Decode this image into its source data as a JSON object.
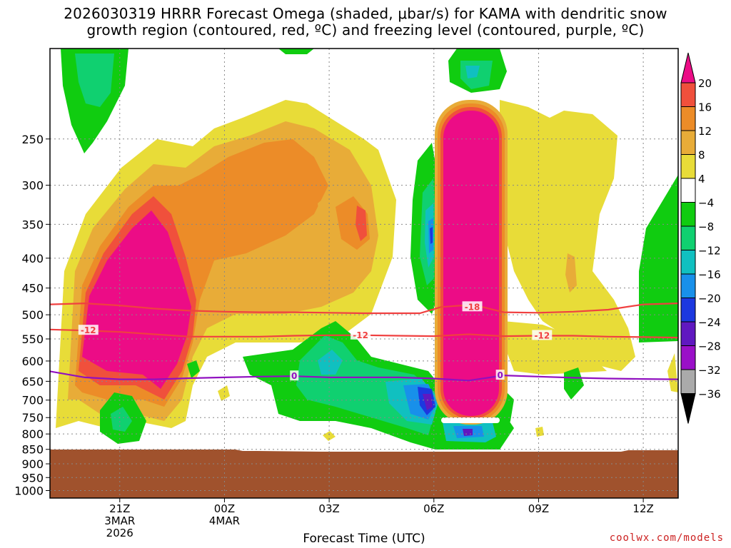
{
  "chart_data": {
    "type": "heatmap",
    "title_line1": "2026030319 HRRR Forecast Omega (shaded, μbar/s) for KAMA with dendritic snow",
    "title_line2": "growth region (contoured, red, ºC) and freezing level (contoured, purple, ºC)",
    "xlabel": "Forecast Time (UTC)",
    "ylabel": "",
    "y_axis": {
      "labels": [
        "250",
        "300",
        "350",
        "400",
        "450",
        "500",
        "550",
        "600",
        "650",
        "700",
        "750",
        "800",
        "850",
        "900",
        "950",
        "1000"
      ],
      "values": [
        250,
        300,
        350,
        400,
        450,
        500,
        550,
        600,
        650,
        700,
        750,
        800,
        850,
        900,
        950,
        1000
      ],
      "range_hpa": [
        175,
        1030
      ]
    },
    "x_axis": {
      "ticks": [
        {
          "label": "21Z",
          "sub1": "3MAR",
          "sub2": "2026",
          "hour": 2
        },
        {
          "label": "00Z",
          "sub1": "4MAR",
          "sub2": "",
          "hour": 5
        },
        {
          "label": "03Z",
          "sub1": "",
          "sub2": "",
          "hour": 8
        },
        {
          "label": "06Z",
          "sub1": "",
          "sub2": "",
          "hour": 11
        },
        {
          "label": "09Z",
          "sub1": "",
          "sub2": "",
          "hour": 14
        },
        {
          "label": "12Z",
          "sub1": "",
          "sub2": "",
          "hour": 17
        }
      ],
      "range_hours": [
        0,
        18
      ]
    },
    "colorbar": {
      "labels": [
        "20",
        "16",
        "12",
        "8",
        "4",
        "−4",
        "−8",
        "−12",
        "−16",
        "−20",
        "−24",
        "−28",
        "−32",
        "−36"
      ],
      "colors": [
        "#ec0c86",
        "#f0503c",
        "#ec8c28",
        "#e8ac38",
        "#e8dc38",
        "#ffffff",
        "#10cc10",
        "#10d070",
        "#10c0c0",
        "#1890ea",
        "#1c38e0",
        "#6018c0",
        "#9a10c8",
        "#aaaaaa",
        "#000000"
      ]
    },
    "series": [
      {
        "name": "dendritic snow growth -18C",
        "label": "-18",
        "color": "#f04040",
        "x": [
          0,
          1,
          2,
          3,
          4,
          5,
          6,
          7,
          8,
          9,
          10,
          10.6,
          11.2,
          11.8,
          12.4,
          13,
          14,
          15,
          16,
          17,
          18
        ],
        "y": [
          480,
          478,
          482,
          488,
          492,
          494,
          495,
          495,
          496,
          497,
          497,
          497,
          485,
          482,
          485,
          495,
          496,
          494,
          490,
          480,
          478
        ]
      },
      {
        "name": "dendritic snow growth -12C",
        "label": "-12",
        "color": "#f04040",
        "x": [
          0,
          1,
          2,
          3,
          4,
          5,
          6,
          7,
          8,
          9,
          10,
          11,
          12,
          13,
          14,
          15,
          16,
          17,
          18
        ],
        "y": [
          530,
          532,
          535,
          540,
          545,
          545,
          545,
          543,
          542,
          542,
          543,
          544,
          540,
          544,
          543,
          543,
          545,
          546,
          547
        ]
      },
      {
        "name": "freezing level 0C",
        "label": "0",
        "color": "#9010c0",
        "x": [
          0,
          1,
          2,
          3,
          4,
          5,
          6,
          7,
          8,
          9,
          10,
          11,
          12,
          13,
          14,
          15,
          16,
          17,
          18
        ],
        "y": [
          625,
          640,
          645,
          645,
          642,
          640,
          638,
          637,
          640,
          640,
          640,
          643,
          648,
          635,
          638,
          641,
          643,
          644,
          645
        ]
      }
    ],
    "contour_labels": [
      {
        "text": "-18",
        "x": 12.1,
        "y": 485
      },
      {
        "text": "-12",
        "x": 1.1,
        "y": 532
      },
      {
        "text": "-12",
        "x": 8.9,
        "y": 542
      },
      {
        "text": "-12",
        "x": 14.1,
        "y": 543
      },
      {
        "text": "0",
        "x": 7.0,
        "y": 637
      },
      {
        "text": "0",
        "x": 12.9,
        "y": 635
      }
    ]
  },
  "credit": "coolwx.com/models"
}
